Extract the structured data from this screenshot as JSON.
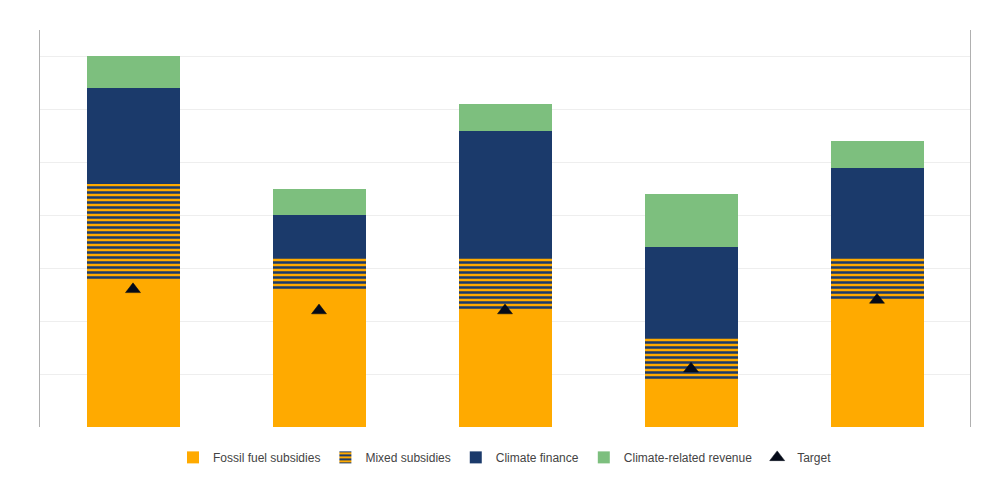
{
  "chart_data": {
    "type": "bar",
    "stacked": true,
    "categories": [
      null,
      null,
      null,
      null,
      null
    ],
    "series": [
      {
        "name": "Fossil fuel subsidies",
        "color": "#FFAA00",
        "values": [
          28,
          26,
          22,
          9,
          24
        ]
      },
      {
        "name": "Mixed subsidies",
        "color": "#FFAA00",
        "marker": "striped",
        "values": [
          18,
          6,
          10,
          8,
          8
        ]
      },
      {
        "name": "Climate finance",
        "color": "#1B3A6B",
        "values": [
          18,
          8,
          24,
          17,
          17
        ]
      },
      {
        "name": "Climate-related revenue",
        "color": "#7DBF7E",
        "values": [
          6,
          5,
          5,
          10,
          5
        ]
      },
      {
        "name": "Target",
        "type": "scatter",
        "marker": "triangle",
        "color": "#050a18",
        "values": [
          26,
          22,
          22,
          11,
          24
        ]
      }
    ],
    "ylim": [
      0,
      75
    ],
    "yticks": [
      0,
      10,
      20,
      30,
      40,
      50,
      60,
      70
    ],
    "grid": true,
    "tick_labels": false
  }
}
